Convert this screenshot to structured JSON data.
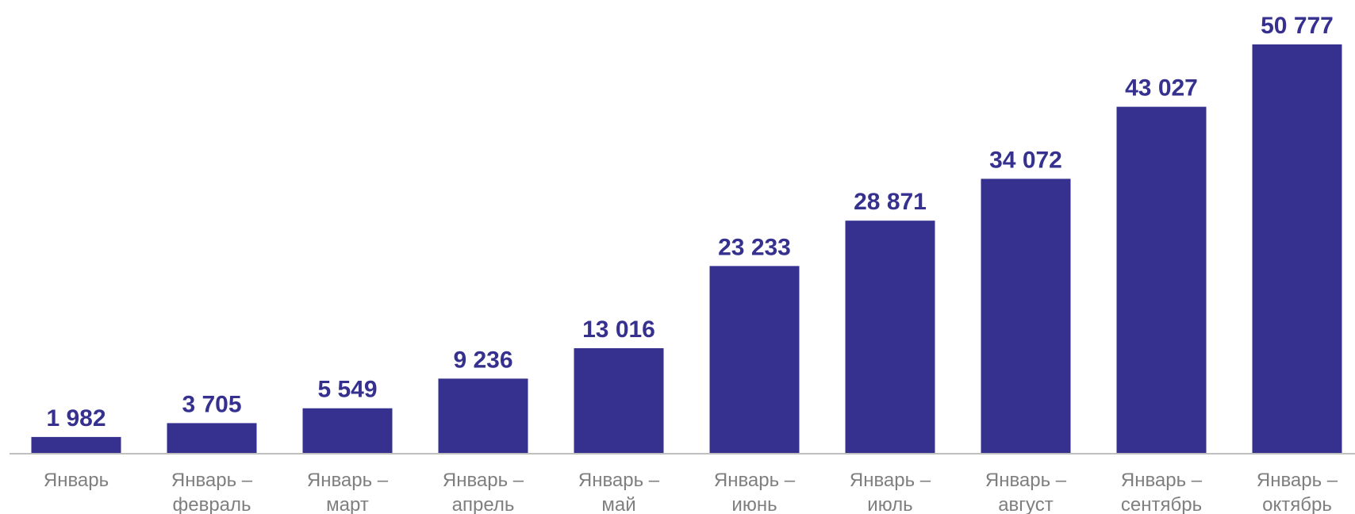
{
  "chart_data": {
    "type": "bar",
    "categories": [
      [
        "Январь"
      ],
      [
        "Январь –",
        "февраль"
      ],
      [
        "Январь –",
        "март"
      ],
      [
        "Январь –",
        "апрель"
      ],
      [
        "Январь –",
        "май"
      ],
      [
        "Январь –",
        "июнь"
      ],
      [
        "Январь –",
        "июль"
      ],
      [
        "Январь –",
        "август"
      ],
      [
        "Январь –",
        "сентябрь"
      ],
      [
        "Январь –",
        "октябрь"
      ]
    ],
    "values": [
      1982,
      3705,
      5549,
      9236,
      13016,
      23233,
      28871,
      34072,
      43027,
      50777
    ],
    "value_labels": [
      "1 982",
      "3 705",
      "5 549",
      "9 236",
      "13 016",
      "23 233",
      "28 871",
      "34 072",
      "43 027",
      "50 777"
    ],
    "title": "",
    "xlabel": "",
    "ylabel": "",
    "ylim": [
      0,
      50777
    ],
    "grid": false,
    "legend": "none",
    "colors": {
      "bar": "#36318f",
      "value_label": "#36318f",
      "tick_label": "#7f7f7f",
      "axis": "#bfbfbf"
    }
  }
}
